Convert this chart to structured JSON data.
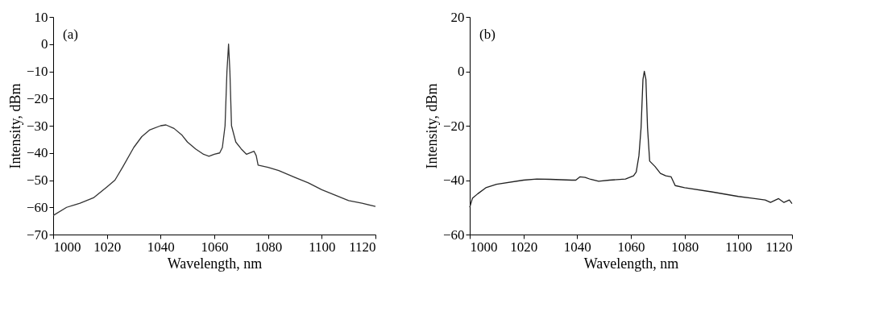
{
  "chart_data": [
    {
      "type": "line",
      "xlabel": "Wavelength, nm",
      "ylabel": "Intensity, dBm",
      "annotations": [
        "(a)"
      ],
      "grid": false,
      "xlim": [
        1000,
        1120
      ],
      "xticks": [
        1000,
        1020,
        1040,
        1060,
        1080,
        1100,
        1120
      ],
      "ylim": [
        -70,
        10
      ],
      "yticks": [
        -70,
        -60,
        -50,
        -40,
        -30,
        -20,
        -10,
        0,
        10
      ],
      "x": [
        1000,
        1005,
        1010,
        1015,
        1020,
        1023,
        1026,
        1030,
        1033,
        1036,
        1040,
        1042,
        1045,
        1048,
        1050,
        1053,
        1056,
        1058,
        1060,
        1062,
        1063,
        1064,
        1064.7,
        1065.3,
        1065.8,
        1066.4,
        1068,
        1070,
        1072,
        1074.8,
        1075.6,
        1076.3,
        1080,
        1084,
        1090,
        1095,
        1100,
        1105,
        1110,
        1115,
        1120
      ],
      "series": [
        {
          "color": "#333333",
          "values": [
            -63,
            -60,
            -58.5,
            -56.5,
            -52.5,
            -50,
            -45,
            -38,
            -34,
            -31.5,
            -30,
            -29.7,
            -31,
            -33.5,
            -36,
            -38.5,
            -40.5,
            -41.2,
            -40.5,
            -40,
            -38,
            -30,
            -10,
            0,
            -10,
            -30,
            -36,
            -38.5,
            -40.5,
            -39.4,
            -41,
            -44.5,
            -45.3,
            -46.5,
            -49,
            -51,
            -53.5,
            -55.5,
            -57.5,
            -58.5,
            -59.7
          ]
        }
      ]
    },
    {
      "type": "line",
      "xlabel": "Wavelength, nm",
      "ylabel": "Intensity, dBm",
      "annotations": [
        "(b)"
      ],
      "grid": false,
      "xlim": [
        1000,
        1120
      ],
      "xticks": [
        1000,
        1020,
        1040,
        1060,
        1080,
        1100,
        1120
      ],
      "ylim": [
        -60,
        20
      ],
      "yticks": [
        -60,
        -40,
        -20,
        0,
        20
      ],
      "x": [
        1000,
        1001,
        1003,
        1006,
        1010,
        1020,
        1025,
        1030,
        1038,
        1039.5,
        1041,
        1043,
        1045,
        1048,
        1052,
        1058,
        1061,
        1062,
        1063,
        1063.8,
        1064.5,
        1065,
        1065.6,
        1066.2,
        1067,
        1069,
        1071,
        1073,
        1075,
        1076.5,
        1080,
        1090,
        1100,
        1105,
        1110,
        1112,
        1115,
        1117,
        1119,
        1120
      ],
      "series": [
        {
          "color": "#222222",
          "values": [
            -50,
            -46.7,
            -45,
            -42.8,
            -41.5,
            -40,
            -39.6,
            -39.7,
            -40,
            -40,
            -38.8,
            -39,
            -39.7,
            -40.4,
            -40,
            -39.6,
            -38.4,
            -37,
            -31,
            -20.7,
            -3,
            0,
            -3,
            -20.7,
            -33,
            -35,
            -37.5,
            -38.4,
            -38.8,
            -42,
            -42.8,
            -44.3,
            -46,
            -46.6,
            -47.3,
            -48.2,
            -46.8,
            -48.2,
            -47.3,
            -48.6
          ]
        }
      ]
    }
  ]
}
